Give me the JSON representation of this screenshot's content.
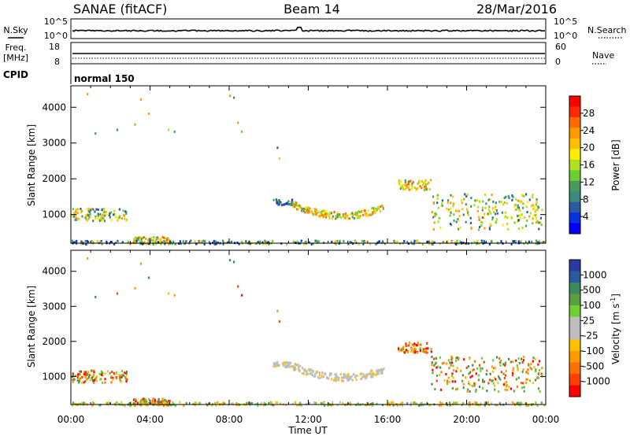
{
  "header": {
    "title": "SANAE (fitACF)",
    "beam": "Beam 14",
    "date": "28/Mar/2016"
  },
  "strip_panels": {
    "nsky": {
      "label": "N.Sky",
      "ticks": [
        "10^5",
        "10^0"
      ]
    },
    "nsearch": {
      "label": "N.Search",
      "ticks": [
        "10^5",
        "10^0"
      ]
    },
    "freq": {
      "label_line1": "Freq.",
      "label_line2": "[MHz]",
      "ticks": [
        "18",
        "8"
      ]
    },
    "nave": {
      "label": "Nave",
      "ticks": [
        "60",
        "0"
      ]
    },
    "cpid": {
      "label": "CPID",
      "value": "normal 150"
    }
  },
  "power_colorbar": {
    "label": "Power [dB]",
    "ticks": [
      "28",
      "24",
      "20",
      "16",
      "12",
      "8",
      "4"
    ],
    "colors": [
      "#ff0000",
      "#ff2a00",
      "#ff6a00",
      "#ff9a00",
      "#ffc000",
      "#ffee00",
      "#b0e020",
      "#6ccf30",
      "#4a9a60",
      "#3a8a80",
      "#2a5aa0",
      "#0a30e0",
      "#0000ff"
    ]
  },
  "velocity_colorbar": {
    "label": "Velocity [m s",
    "label_sup": "-1",
    "label_end": "]",
    "ticks": [
      "1000",
      "500",
      "100",
      "25",
      "-25",
      "-100",
      "-500",
      "-1000"
    ],
    "colors": [
      "#2a3aa0",
      "#2a5aa0",
      "#3a8a60",
      "#5aa040",
      "#70d030",
      "#bebebe",
      "#bebebe",
      "#ffc000",
      "#ff9a00",
      "#ff7000",
      "#ff4000",
      "#ff0000"
    ]
  },
  "time_axis": {
    "ticks": [
      "00:00",
      "04:00",
      "08:00",
      "12:00",
      "16:00",
      "20:00",
      "00:00"
    ],
    "label": "Time UT"
  },
  "chart_data": [
    {
      "type": "heatmap",
      "panel": "power",
      "ylabel": "Slant Range [km]",
      "yticks": [
        "1000",
        "2000",
        "3000",
        "4000"
      ],
      "ylim": [
        200,
        4600
      ],
      "xlim": [
        0,
        24
      ],
      "xlabel": "Time UT",
      "colorbar_label": "Power [dB]",
      "clim": [
        0,
        30
      ],
      "scatter_regions": [
        {
          "t": [
            0.0,
            2.8
          ],
          "r": [
            850,
            1200
          ],
          "level": "mixed"
        },
        {
          "t": [
            3.1,
            5.0
          ],
          "r": [
            200,
            400
          ],
          "level": "strong"
        },
        {
          "t": [
            10.2,
            11.2
          ],
          "r": [
            1300,
            1450
          ],
          "level": "weak"
        },
        {
          "t": [
            11.2,
            15.8
          ],
          "r": [
            900,
            1400
          ],
          "level": "strong"
        },
        {
          "t": [
            16.5,
            18.2
          ],
          "r": [
            1700,
            2000
          ],
          "level": "strong"
        },
        {
          "t": [
            18.2,
            23.8
          ],
          "r": [
            600,
            1600
          ],
          "level": "mixed"
        },
        {
          "t": [
            0.0,
            24.0
          ],
          "r": [
            200,
            300
          ],
          "level": "sparse"
        }
      ]
    },
    {
      "type": "heatmap",
      "panel": "velocity",
      "ylabel": "Slant Range [km]",
      "yticks": [
        "1000",
        "2000",
        "3000",
        "4000"
      ],
      "ylim": [
        200,
        4600
      ],
      "xlim": [
        0,
        24
      ],
      "xlabel": "Time UT",
      "colorbar_label": "Velocity [m s-1]",
      "clim": [
        -1000,
        1000
      ],
      "scatter_regions": [
        {
          "t": [
            0.0,
            2.8
          ],
          "r": [
            850,
            1200
          ],
          "level": "mixed"
        },
        {
          "t": [
            3.1,
            5.0
          ],
          "r": [
            200,
            400
          ],
          "level": "mixed"
        },
        {
          "t": [
            10.2,
            11.2
          ],
          "r": [
            1300,
            1450
          ],
          "level": "ground"
        },
        {
          "t": [
            11.2,
            15.8
          ],
          "r": [
            900,
            1400
          ],
          "level": "ground"
        },
        {
          "t": [
            16.5,
            18.2
          ],
          "r": [
            1700,
            2000
          ],
          "level": "negative"
        },
        {
          "t": [
            18.2,
            23.8
          ],
          "r": [
            600,
            1600
          ],
          "level": "mixed"
        },
        {
          "t": [
            0.0,
            24.0
          ],
          "r": [
            200,
            300
          ],
          "level": "sparse"
        }
      ]
    }
  ]
}
